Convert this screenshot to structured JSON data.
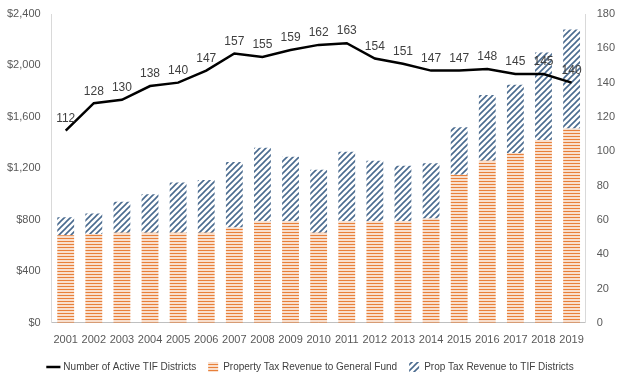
{
  "chart_data": {
    "type": "bar",
    "stacked": true,
    "grid": false,
    "legend": "bottom",
    "categories": [
      "2001",
      "2002",
      "2003",
      "2004",
      "2005",
      "2006",
      "2007",
      "2008",
      "2009",
      "2010",
      "2011",
      "2012",
      "2013",
      "2014",
      "2015",
      "2016",
      "2017",
      "2018",
      "2019"
    ],
    "ylim": [
      0,
      2400
    ],
    "yticks": [
      {
        "value": 0,
        "label": "$0"
      },
      {
        "value": 400,
        "label": "$400"
      },
      {
        "value": 800,
        "label": "$800"
      },
      {
        "value": 1200,
        "label": "$1,200"
      },
      {
        "value": 1600,
        "label": "$1,600"
      },
      {
        "value": 2000,
        "label": "$2,000"
      },
      {
        "value": 2400,
        "label": "$2,400"
      }
    ],
    "y2lim": [
      0,
      180
    ],
    "y2ticks": [
      0,
      20,
      40,
      60,
      80,
      100,
      120,
      140,
      160,
      180
    ],
    "series": [
      {
        "name": "Property Tax Revenue to General Fund",
        "type": "bar",
        "color": "#e8803a",
        "values": [
          680,
          690,
          700,
          700,
          700,
          700,
          740,
          790,
          790,
          700,
          790,
          790,
          790,
          810,
          1150,
          1260,
          1320,
          1420,
          1510
        ]
      },
      {
        "name": "Prop Tax Revenue to TIF Districts",
        "type": "bar",
        "color": "#4a6b8f",
        "values": [
          140,
          160,
          240,
          300,
          390,
          410,
          510,
          570,
          500,
          490,
          540,
          470,
          430,
          430,
          370,
          510,
          530,
          680,
          770
        ]
      },
      {
        "name": "Number of Active TIF Districts",
        "type": "line",
        "axis": "y2",
        "color": "#000000",
        "data_labels": true,
        "values": [
          112,
          128,
          130,
          138,
          140,
          147,
          157,
          155,
          159,
          162,
          163,
          154,
          151,
          147,
          147,
          148,
          145,
          145,
          140
        ]
      }
    ]
  }
}
